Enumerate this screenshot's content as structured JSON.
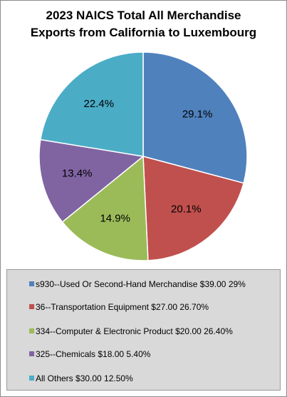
{
  "chart_data": {
    "type": "pie",
    "title": [
      "2023 NAICS Total All Merchandise",
      "Exports from California to Luxembourg"
    ],
    "slices": [
      {
        "label": "29.1%",
        "value": 29.1,
        "color": "#4f81bd"
      },
      {
        "label": "20.1%",
        "value": 20.1,
        "color": "#c0504d"
      },
      {
        "label": "14.9%",
        "value": 14.9,
        "color": "#9bbb59"
      },
      {
        "label": "13.4%",
        "value": 13.4,
        "color": "#8064a2"
      },
      {
        "label": "22.4%",
        "value": 22.4,
        "color": "#4bacc6"
      }
    ],
    "legend": [
      {
        "text": "s930--Used Or Second-Hand Merchandise $39.00 29%",
        "color": "#4f81bd"
      },
      {
        "text": "36--Transportation Equipment $27.00 26.70%",
        "color": "#c0504d"
      },
      {
        "text": "334--Computer & Electronic Product $20.00 26.40%",
        "color": "#9bbb59"
      },
      {
        "text": "325--Chemicals $18.00 5.40%",
        "color": "#8064a2"
      },
      {
        "text": "All Others $30.00 12.50%",
        "color": "#4bacc6"
      }
    ],
    "legend_placement": "bottom"
  }
}
